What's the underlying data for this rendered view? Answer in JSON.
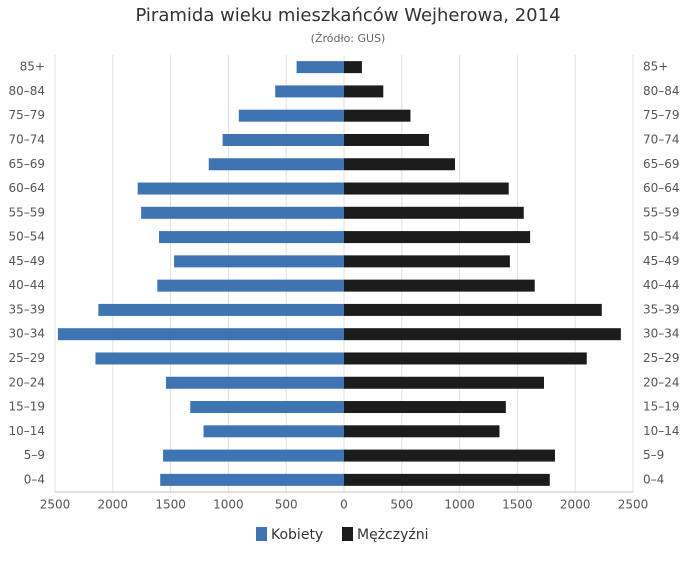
{
  "chart_data": {
    "type": "pyramid",
    "title": "Piramida wieku mieszkańców Wejherowa, 2014",
    "subtitle": "(Źródło: GUS)",
    "categories": [
      "0–4",
      "5–9",
      "10–14",
      "15–19",
      "20–24",
      "25–29",
      "30–34",
      "35–39",
      "40–44",
      "45–49",
      "50–54",
      "55–59",
      "60–64",
      "65–69",
      "70–74",
      "75–79",
      "80–84",
      "85+"
    ],
    "series": [
      {
        "name": "Kobiety",
        "color": "#3f74b3",
        "values": [
          -1590,
          -1565,
          -1215,
          -1330,
          -1540,
          -2150,
          -2475,
          -2125,
          -1615,
          -1470,
          -1600,
          -1755,
          -1785,
          -1170,
          -1050,
          -910,
          -595,
          -410
        ]
      },
      {
        "name": "Mężczyźni",
        "color": "#1c1c1c",
        "values": [
          1780,
          1825,
          1345,
          1400,
          1730,
          2100,
          2395,
          2230,
          1650,
          1435,
          1610,
          1555,
          1425,
          960,
          735,
          575,
          340,
          155
        ]
      }
    ],
    "xlim": [
      -2500,
      2500
    ],
    "xticks": [
      {
        "value": -2500,
        "label": "2500"
      },
      {
        "value": -2000,
        "label": "2000"
      },
      {
        "value": -1500,
        "label": "1500"
      },
      {
        "value": -1000,
        "label": "1000"
      },
      {
        "value": -500,
        "label": "500"
      },
      0,
      500,
      1000,
      1500,
      2000,
      2500
    ],
    "grid": true,
    "legend": "bottom"
  }
}
